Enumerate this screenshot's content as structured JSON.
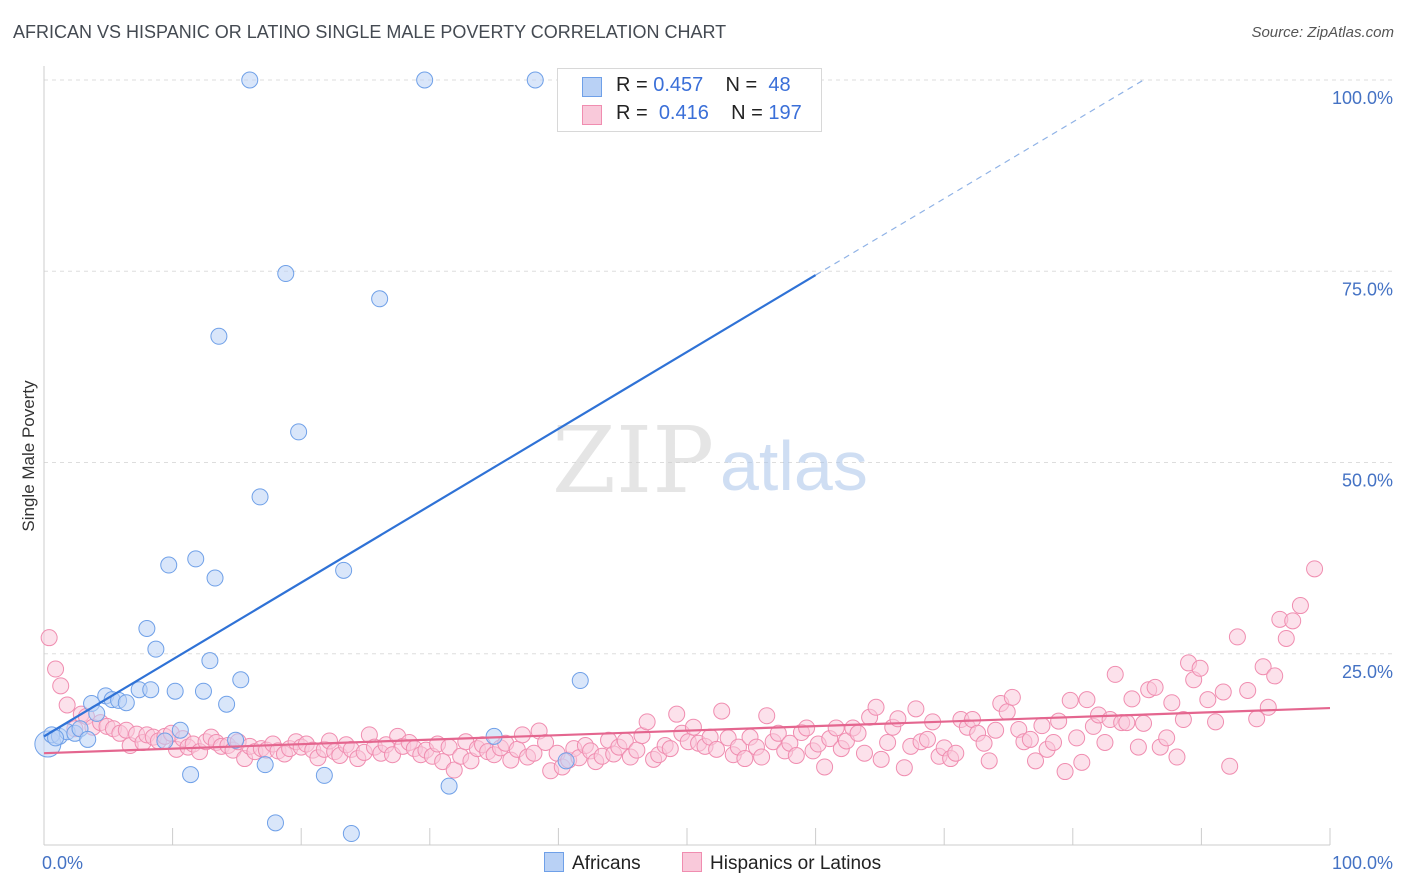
{
  "title": "AFRICAN VS HISPANIC OR LATINO SINGLE MALE POVERTY CORRELATION CHART",
  "source": "Source: ZipAtlas.com",
  "watermark": {
    "zip": "ZIP",
    "atlas": "atlas"
  },
  "colors": {
    "africans": "#6fa0e8",
    "africans_fill": "#b9d1f5",
    "hispanics": "#f08db0",
    "hispanics_fill": "#f9c9da",
    "africans_line": "#2f72d6",
    "hispanics_line": "#e4668f",
    "tick": "#4472c4"
  },
  "legend": {
    "africans": {
      "r_label": "R = ",
      "r_value": "0.457",
      "n_label": "N = ",
      "n_value": "48"
    },
    "hispanics": {
      "r_label": "R = ",
      "r_value": "0.416",
      "n_label": "N = ",
      "n_value": "197"
    }
  },
  "bottom_legend": {
    "africans": "Africans",
    "hispanics": "Hispanics or Latinos"
  },
  "chart_data": {
    "type": "scatter",
    "title": "AFRICAN VS HISPANIC OR LATINO SINGLE MALE POVERTY CORRELATION CHART",
    "xlabel": "",
    "ylabel": "Single Male Poverty",
    "xlim": [
      0,
      100
    ],
    "ylim": [
      0,
      100
    ],
    "x_tick_labels": [
      "0.0%",
      "100.0%"
    ],
    "y_tick_labels": [
      "25.0%",
      "50.0%",
      "75.0%",
      "100.0%"
    ],
    "y_ticks": [
      25,
      50,
      75,
      100
    ],
    "grid": true,
    "legend_position": "top-center",
    "series": [
      {
        "name": "Africans",
        "r": 0.457,
        "n": 48,
        "trend": {
          "x": [
            0,
            60
          ],
          "y": [
            14.2,
            74.5
          ],
          "dashed_extension": {
            "x": [
              60,
              85.5
            ],
            "y": [
              74.5,
              100
            ]
          }
        },
        "points": [
          [
            0.3,
            13.2
          ],
          [
            0.6,
            14.4
          ],
          [
            1.2,
            14.2
          ],
          [
            1.8,
            14.8
          ],
          [
            2.4,
            14.6
          ],
          [
            2.8,
            15.2
          ],
          [
            3.4,
            13.8
          ],
          [
            3.7,
            18.5
          ],
          [
            4.1,
            17.2
          ],
          [
            4.8,
            19.5
          ],
          [
            5.3,
            19.0
          ],
          [
            5.8,
            18.9
          ],
          [
            6.4,
            18.6
          ],
          [
            7.4,
            20.3
          ],
          [
            8.0,
            28.3
          ],
          [
            8.3,
            20.3
          ],
          [
            8.7,
            25.6
          ],
          [
            9.4,
            13.6
          ],
          [
            9.7,
            36.6
          ],
          [
            10.2,
            20.1
          ],
          [
            10.6,
            15.0
          ],
          [
            11.4,
            9.2
          ],
          [
            11.8,
            37.4
          ],
          [
            12.4,
            20.1
          ],
          [
            12.9,
            24.1
          ],
          [
            13.3,
            34.9
          ],
          [
            13.6,
            66.5
          ],
          [
            14.2,
            18.4
          ],
          [
            14.9,
            13.7
          ],
          [
            15.3,
            21.6
          ],
          [
            16.0,
            100.0
          ],
          [
            16.8,
            45.5
          ],
          [
            17.2,
            10.5
          ],
          [
            18.0,
            2.9
          ],
          [
            18.8,
            74.7
          ],
          [
            19.8,
            54.0
          ],
          [
            21.8,
            9.1
          ],
          [
            23.3,
            35.9
          ],
          [
            23.9,
            1.5
          ],
          [
            26.1,
            71.4
          ],
          [
            29.6,
            100.0
          ],
          [
            31.5,
            7.7
          ],
          [
            35.0,
            14.2
          ],
          [
            38.2,
            100.0
          ],
          [
            40.6,
            11.0
          ],
          [
            41.7,
            21.5
          ],
          [
            55.2,
            100.0
          ],
          [
            0.9,
            14.0
          ]
        ]
      },
      {
        "name": "Hispanics or Latinos",
        "r": 0.416,
        "n": 197,
        "trend": {
          "x": [
            0,
            100
          ],
          "y": [
            12.0,
            17.9
          ]
        },
        "points": [
          [
            0.4,
            27.1
          ],
          [
            0.9,
            23.0
          ],
          [
            1.3,
            20.8
          ],
          [
            1.8,
            18.3
          ],
          [
            2.4,
            15.2
          ],
          [
            2.9,
            17.1
          ],
          [
            3.3,
            16.8
          ],
          [
            3.8,
            15.4
          ],
          [
            4.4,
            16.0
          ],
          [
            4.9,
            15.5
          ],
          [
            5.4,
            15.2
          ],
          [
            5.9,
            14.6
          ],
          [
            6.4,
            15.0
          ],
          [
            6.7,
            13.0
          ],
          [
            7.2,
            14.5
          ],
          [
            7.7,
            13.4
          ],
          [
            8.0,
            14.4
          ],
          [
            8.5,
            14.1
          ],
          [
            8.9,
            13.6
          ],
          [
            9.4,
            14.2
          ],
          [
            9.9,
            14.6
          ],
          [
            10.3,
            12.5
          ],
          [
            10.8,
            13.9
          ],
          [
            11.2,
            12.8
          ],
          [
            11.6,
            13.2
          ],
          [
            12.1,
            12.2
          ],
          [
            12.6,
            13.5
          ],
          [
            13.0,
            14.1
          ],
          [
            13.4,
            13.4
          ],
          [
            13.8,
            12.9
          ],
          [
            14.3,
            13.0
          ],
          [
            14.7,
            12.4
          ],
          [
            15.1,
            13.5
          ],
          [
            15.6,
            11.3
          ],
          [
            16.0,
            12.9
          ],
          [
            16.4,
            12.2
          ],
          [
            16.9,
            12.6
          ],
          [
            17.3,
            12.4
          ],
          [
            17.8,
            13.2
          ],
          [
            18.2,
            12.3
          ],
          [
            18.7,
            11.9
          ],
          [
            19.1,
            12.6
          ],
          [
            19.6,
            13.5
          ],
          [
            20.0,
            12.8
          ],
          [
            20.4,
            13.2
          ],
          [
            20.9,
            12.4
          ],
          [
            21.3,
            11.4
          ],
          [
            21.8,
            12.5
          ],
          [
            22.2,
            13.6
          ],
          [
            22.6,
            12.2
          ],
          [
            23.0,
            11.7
          ],
          [
            23.5,
            13.1
          ],
          [
            23.9,
            12.5
          ],
          [
            24.4,
            11.3
          ],
          [
            24.9,
            12.1
          ],
          [
            25.3,
            14.4
          ],
          [
            25.7,
            12.8
          ],
          [
            26.2,
            12.0
          ],
          [
            26.6,
            13.1
          ],
          [
            27.1,
            11.8
          ],
          [
            27.5,
            14.2
          ],
          [
            27.9,
            12.9
          ],
          [
            28.4,
            13.4
          ],
          [
            28.8,
            12.6
          ],
          [
            29.3,
            11.8
          ],
          [
            29.7,
            12.4
          ],
          [
            30.2,
            11.6
          ],
          [
            30.6,
            13.2
          ],
          [
            31.0,
            10.9
          ],
          [
            31.5,
            12.8
          ],
          [
            31.9,
            9.8
          ],
          [
            32.4,
            11.6
          ],
          [
            32.8,
            13.5
          ],
          [
            33.2,
            11.0
          ],
          [
            33.7,
            12.6
          ],
          [
            34.1,
            13.1
          ],
          [
            34.5,
            12.2
          ],
          [
            35.0,
            11.8
          ],
          [
            35.5,
            12.7
          ],
          [
            35.9,
            13.3
          ],
          [
            36.3,
            11.1
          ],
          [
            36.8,
            12.5
          ],
          [
            37.2,
            14.4
          ],
          [
            37.6,
            11.5
          ],
          [
            38.1,
            12.0
          ],
          [
            38.5,
            14.9
          ],
          [
            39.0,
            13.4
          ],
          [
            39.4,
            9.7
          ],
          [
            39.9,
            12.0
          ],
          [
            40.3,
            10.2
          ],
          [
            40.8,
            11.1
          ],
          [
            41.2,
            12.6
          ],
          [
            41.6,
            11.4
          ],
          [
            42.1,
            13.0
          ],
          [
            42.5,
            12.3
          ],
          [
            42.9,
            10.9
          ],
          [
            43.4,
            11.6
          ],
          [
            43.9,
            13.7
          ],
          [
            44.3,
            11.9
          ],
          [
            44.7,
            12.8
          ],
          [
            45.2,
            13.6
          ],
          [
            45.6,
            11.5
          ],
          [
            46.1,
            12.4
          ],
          [
            46.5,
            14.3
          ],
          [
            46.9,
            16.1
          ],
          [
            47.4,
            11.2
          ],
          [
            47.8,
            11.8
          ],
          [
            48.3,
            13.0
          ],
          [
            48.7,
            12.6
          ],
          [
            49.2,
            17.1
          ],
          [
            49.6,
            14.6
          ],
          [
            50.1,
            13.5
          ],
          [
            50.5,
            15.4
          ],
          [
            50.9,
            13.3
          ],
          [
            51.4,
            12.9
          ],
          [
            51.8,
            14.1
          ],
          [
            52.3,
            12.5
          ],
          [
            52.7,
            17.5
          ],
          [
            53.2,
            14.0
          ],
          [
            53.6,
            11.8
          ],
          [
            54.0,
            12.8
          ],
          [
            54.5,
            11.3
          ],
          [
            54.9,
            14.1
          ],
          [
            55.4,
            12.8
          ],
          [
            55.8,
            11.5
          ],
          [
            56.2,
            16.9
          ],
          [
            56.7,
            13.5
          ],
          [
            57.1,
            14.6
          ],
          [
            57.6,
            12.3
          ],
          [
            58.0,
            13.3
          ],
          [
            58.5,
            11.7
          ],
          [
            58.9,
            14.7
          ],
          [
            59.3,
            15.3
          ],
          [
            59.8,
            12.3
          ],
          [
            60.2,
            13.2
          ],
          [
            60.7,
            10.2
          ],
          [
            61.1,
            13.9
          ],
          [
            61.6,
            15.3
          ],
          [
            62.0,
            12.6
          ],
          [
            62.4,
            13.6
          ],
          [
            62.9,
            15.3
          ],
          [
            63.3,
            14.6
          ],
          [
            63.8,
            12.0
          ],
          [
            64.2,
            16.7
          ],
          [
            64.7,
            18.0
          ],
          [
            65.1,
            11.2
          ],
          [
            65.6,
            13.4
          ],
          [
            66.0,
            15.4
          ],
          [
            66.4,
            16.5
          ],
          [
            66.9,
            10.1
          ],
          [
            67.4,
            12.9
          ],
          [
            67.8,
            17.8
          ],
          [
            68.2,
            13.5
          ],
          [
            68.7,
            13.8
          ],
          [
            69.1,
            16.1
          ],
          [
            69.6,
            11.6
          ],
          [
            70.0,
            12.7
          ],
          [
            70.5,
            11.3
          ],
          [
            70.9,
            12.0
          ],
          [
            71.3,
            16.4
          ],
          [
            71.8,
            15.4
          ],
          [
            72.2,
            16.4
          ],
          [
            72.6,
            14.6
          ],
          [
            73.1,
            13.3
          ],
          [
            73.5,
            11.0
          ],
          [
            74.0,
            15.0
          ],
          [
            74.4,
            18.5
          ],
          [
            74.9,
            17.4
          ],
          [
            75.3,
            19.3
          ],
          [
            75.8,
            15.1
          ],
          [
            76.2,
            13.5
          ],
          [
            76.7,
            13.8
          ],
          [
            77.1,
            11.0
          ],
          [
            77.6,
            15.6
          ],
          [
            78.0,
            12.5
          ],
          [
            78.5,
            13.4
          ],
          [
            78.9,
            16.2
          ],
          [
            79.4,
            9.6
          ],
          [
            79.8,
            18.9
          ],
          [
            80.3,
            14.0
          ],
          [
            80.7,
            10.8
          ],
          [
            81.1,
            19.0
          ],
          [
            81.6,
            15.5
          ],
          [
            82.0,
            17.0
          ],
          [
            82.5,
            13.4
          ],
          [
            82.9,
            16.4
          ],
          [
            83.3,
            22.3
          ],
          [
            83.8,
            16.0
          ],
          [
            84.2,
            16.0
          ],
          [
            84.6,
            19.1
          ],
          [
            85.1,
            12.8
          ],
          [
            85.5,
            15.9
          ],
          [
            85.9,
            20.3
          ],
          [
            86.4,
            20.6
          ],
          [
            86.8,
            12.8
          ],
          [
            87.3,
            14.0
          ],
          [
            87.7,
            18.6
          ],
          [
            88.1,
            11.5
          ],
          [
            88.6,
            16.4
          ],
          [
            89.0,
            23.8
          ],
          [
            89.4,
            21.6
          ],
          [
            89.9,
            23.1
          ],
          [
            90.5,
            19.0
          ],
          [
            91.1,
            16.1
          ],
          [
            91.7,
            20.0
          ],
          [
            92.2,
            10.3
          ],
          [
            92.8,
            27.2
          ],
          [
            93.6,
            20.2
          ],
          [
            94.3,
            16.5
          ],
          [
            94.8,
            23.3
          ],
          [
            95.2,
            18.0
          ],
          [
            95.7,
            22.1
          ],
          [
            96.1,
            29.5
          ],
          [
            96.6,
            27.0
          ],
          [
            97.1,
            29.3
          ],
          [
            97.7,
            31.3
          ],
          [
            98.8,
            36.1
          ]
        ]
      }
    ]
  }
}
